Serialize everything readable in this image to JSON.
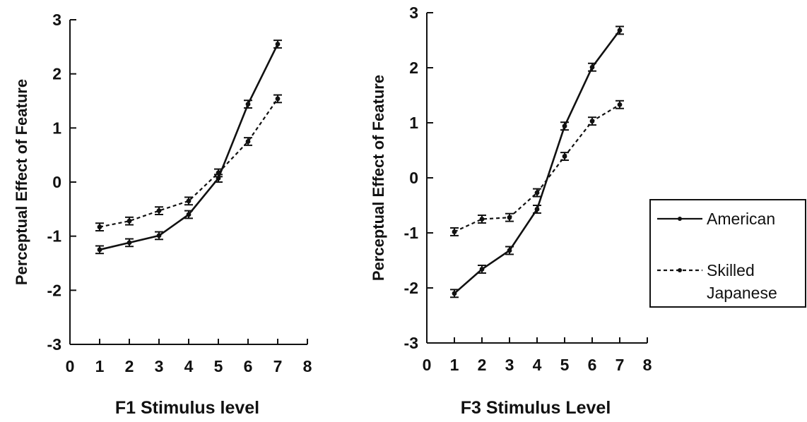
{
  "chart_data": [
    {
      "type": "line",
      "xlabel": "F1 Stimulus level",
      "ylabel": "Perceptual Effect of Feature",
      "xlim": [
        0,
        8
      ],
      "ylim": [
        -3,
        3
      ],
      "xticks": [
        "0",
        "1",
        "2",
        "3",
        "4",
        "5",
        "6",
        "7",
        "8"
      ],
      "yticks": [
        "3",
        "2",
        "1",
        "0",
        "-1",
        "-2",
        "-3"
      ],
      "x": [
        1,
        2,
        3,
        4,
        5,
        6,
        7
      ],
      "series": [
        {
          "name": "American",
          "style": "solid",
          "values": [
            -1.25,
            -1.12,
            -0.99,
            -0.6,
            0.07,
            1.44,
            2.55
          ],
          "errors": [
            0.07,
            0.07,
            0.07,
            0.07,
            0.07,
            0.07,
            0.07
          ]
        },
        {
          "name": "Skilled Japanese",
          "style": "dashed",
          "values": [
            -0.83,
            -0.72,
            -0.53,
            -0.35,
            0.17,
            0.75,
            1.54
          ],
          "errors": [
            0.07,
            0.07,
            0.07,
            0.07,
            0.07,
            0.07,
            0.07
          ]
        }
      ]
    },
    {
      "type": "line",
      "xlabel": "F3 Stimulus Level",
      "ylabel": "Perceptual Effect of Feature",
      "xlim": [
        0,
        8
      ],
      "ylim": [
        -3,
        3
      ],
      "xticks": [
        "0",
        "1",
        "2",
        "3",
        "4",
        "5",
        "6",
        "7",
        "8"
      ],
      "yticks": [
        "3",
        "2",
        "1",
        "0",
        "-1",
        "-2",
        "-3"
      ],
      "x": [
        1,
        2,
        3,
        4,
        5,
        6,
        7
      ],
      "series": [
        {
          "name": "American",
          "style": "solid",
          "values": [
            -2.1,
            -1.66,
            -1.32,
            -0.57,
            0.94,
            2.01,
            2.68
          ],
          "errors": [
            0.07,
            0.07,
            0.07,
            0.07,
            0.07,
            0.07,
            0.07
          ]
        },
        {
          "name": "Skilled Japanese",
          "style": "dashed",
          "values": [
            -0.98,
            -0.75,
            -0.72,
            -0.27,
            0.39,
            1.03,
            1.33
          ],
          "errors": [
            0.07,
            0.07,
            0.07,
            0.07,
            0.07,
            0.07,
            0.07
          ]
        }
      ]
    }
  ],
  "legend": {
    "items": [
      {
        "label_lines": [
          "American"
        ],
        "style": "solid"
      },
      {
        "label_lines": [
          "Skilled",
          "Japanese"
        ],
        "style": "dashed"
      }
    ]
  }
}
